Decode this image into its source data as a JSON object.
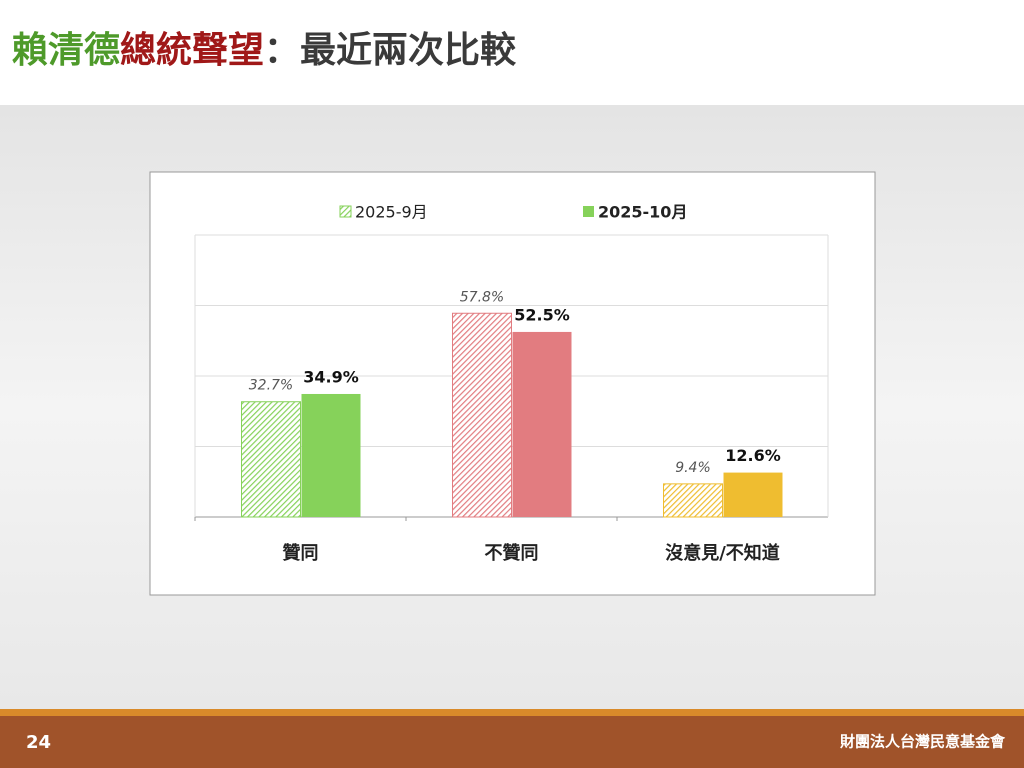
{
  "title_parts": [
    "賴清德",
    "總統聲望",
    "：最近兩次比較"
  ],
  "chart_data": {
    "type": "bar",
    "categories": [
      "贊同",
      "不贊同",
      "沒意見/不知道"
    ],
    "category_colors": [
      "#86d25a",
      "#e27c80",
      "#efbd30"
    ],
    "series": [
      {
        "name": "2025-9月",
        "color": "#86d25a",
        "pattern": "hatch",
        "values": [
          32.7,
          57.8,
          9.4
        ],
        "value_labels": [
          "32.7%",
          "57.8%",
          "9.4%"
        ]
      },
      {
        "name": "2025-10月",
        "color": "#86d25a",
        "pattern": "solid",
        "values": [
          34.9,
          52.5,
          12.6
        ],
        "value_labels": [
          "34.9%",
          "52.5%",
          "12.6%"
        ]
      }
    ],
    "ylim": [
      0,
      80
    ],
    "yticks": [
      0,
      20,
      40,
      60,
      80
    ],
    "grid": true
  },
  "footer": {
    "page": "24",
    "org": "財團法人台灣民意基金會"
  }
}
